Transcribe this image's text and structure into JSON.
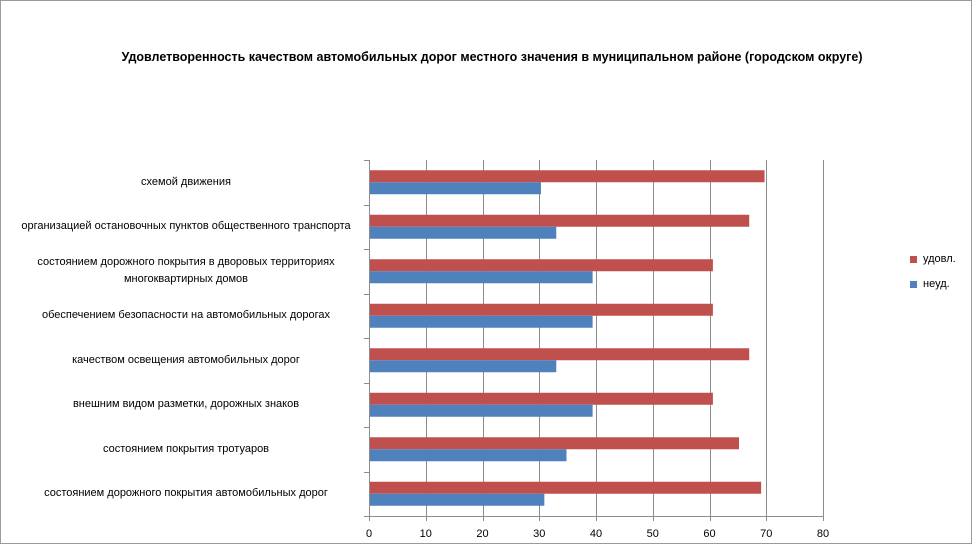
{
  "chart_data": {
    "type": "bar",
    "orientation": "horizontal",
    "title": "Удовлетворенность качеством автомобильных дорог местного значения в муниципальном районе (городском округе)",
    "categories": [
      "схемой движения",
      "организацией остановочных пунктов общественного транспорта",
      "состоянием дорожного покрытия в дворовых территориях многоквартирных домов",
      "обеспечением  безопасности на автомобильных дорогах",
      "качеством освещения  автомобильных дорог",
      "внешним  видом разметки, дорожных знаков",
      "состоянием покрытия тротуаров",
      "состоянием дорожного покрытия автомобильных дорог"
    ],
    "series": [
      {
        "name": "удовл.",
        "color": "#c0504d",
        "values": [
          69.7,
          67.0,
          60.6,
          60.6,
          67.0,
          60.6,
          65.2,
          69.1
        ]
      },
      {
        "name": "неуд.",
        "color": "#4f81bd",
        "values": [
          30.3,
          33.0,
          39.4,
          39.4,
          33.0,
          39.4,
          34.8,
          30.9
        ]
      }
    ],
    "xlim": [
      0,
      80
    ],
    "xticks": [
      "0",
      "10",
      "20",
      "30",
      "40",
      "50",
      "60",
      "70",
      "80"
    ],
    "grid": true,
    "legend": "right"
  }
}
